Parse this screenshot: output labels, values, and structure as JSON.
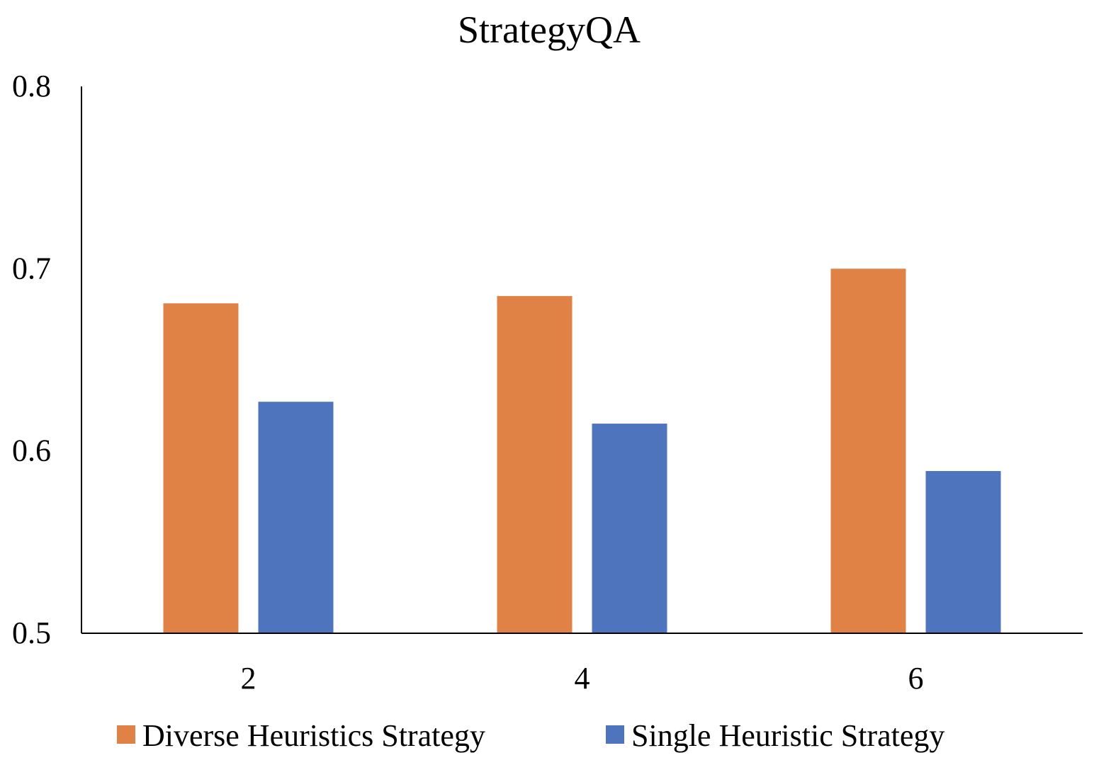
{
  "chart_data": {
    "type": "bar",
    "title": "StrategyQA",
    "xlabel": "",
    "ylabel": "",
    "categories": [
      "2",
      "4",
      "6"
    ],
    "ylim": [
      0.5,
      0.8
    ],
    "yticks": [
      "0.5",
      "0.6",
      "0.7",
      "0.8"
    ],
    "grid": false,
    "legend_position": "bottom",
    "series": [
      {
        "name": "Diverse Heuristics Strategy",
        "color": "#E08246",
        "values": [
          0.681,
          0.685,
          0.7
        ]
      },
      {
        "name": "Single Heuristic Strategy",
        "color": "#4F74BE",
        "values": [
          0.627,
          0.615,
          0.589
        ]
      }
    ]
  }
}
